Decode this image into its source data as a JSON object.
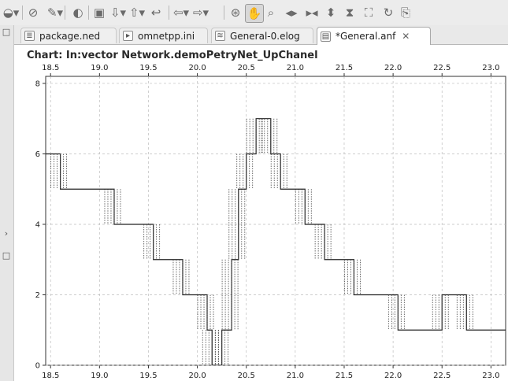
{
  "toolbar": {
    "icons": [
      "save-dropdown-icon",
      "link-icon",
      "pen-dropdown-icon",
      "open-icon",
      "document-icon",
      "next-annotation-icon",
      "prev-annotation-icon",
      "history-icon",
      "back-icon",
      "forward-icon",
      "zoom-fit-icon",
      "hand-pan-icon",
      "zoom-icon",
      "zoom-horizontal-icon",
      "zoom-horizontal-alt-icon",
      "zoom-vertical-icon",
      "zoom-vertical-alt-icon",
      "zoom-rect-icon",
      "refresh-icon",
      "copy-icon"
    ]
  },
  "tabs": [
    {
      "label": "package.ned",
      "icon": "ned-file-icon",
      "active": false
    },
    {
      "label": "omnetpp.ini",
      "icon": "ini-file-icon",
      "active": false
    },
    {
      "label": "General-0.elog",
      "icon": "elog-file-icon",
      "active": false
    },
    {
      "label": "*General.anf",
      "icon": "anf-file-icon",
      "active": true,
      "close": "✕"
    }
  ],
  "chart": {
    "title": "Chart: In:vector Network.demoPetryNet_UpChanel"
  },
  "chart_data": {
    "type": "line",
    "title": "Chart: In:vector Network.demoPetryNet_UpChanel",
    "xlabel": "",
    "ylabel": "",
    "xlim": [
      18.45,
      23.15
    ],
    "ylim": [
      0,
      8.2
    ],
    "x_ticks": [
      "18.5",
      "19.0",
      "19.5",
      "20.0",
      "20.5",
      "21.0",
      "21.5",
      "22.0",
      "22.5",
      "23.0"
    ],
    "y_ticks": [
      "0",
      "2",
      "4",
      "6",
      "8"
    ],
    "grid": true,
    "series": [
      {
        "name": "",
        "style": "step",
        "x": [
          18.45,
          18.6,
          18.95,
          19.15,
          19.4,
          19.55,
          19.75,
          19.85,
          20.0,
          20.1,
          20.15,
          20.25,
          20.35,
          20.42,
          20.5,
          20.6,
          20.75,
          20.85,
          20.92,
          21.1,
          21.3,
          21.45,
          21.6,
          21.85,
          22.05,
          22.25,
          22.5,
          22.75,
          23.15
        ],
        "y": [
          6,
          5,
          5,
          4,
          4,
          3,
          3,
          2,
          2,
          1,
          0,
          1,
          3,
          5,
          6,
          7,
          6,
          5,
          5,
          4,
          3,
          3,
          2,
          2,
          1,
          1,
          2,
          1,
          1
        ]
      }
    ]
  }
}
